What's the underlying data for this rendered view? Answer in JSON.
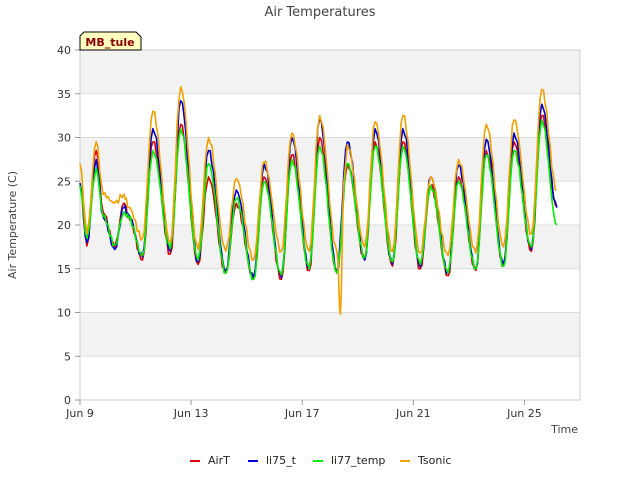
{
  "chart_data": {
    "type": "line",
    "title": "Air Temperatures",
    "xlabel": "Time",
    "ylabel": "Air Temperature (C)",
    "site_badge": "MB_tule",
    "xlim": [
      "2023-06-09",
      "2023-06-27"
    ],
    "ylim": [
      0,
      40
    ],
    "x_ticks": [
      {
        "date": "2023-06-09",
        "label": "Jun 9"
      },
      {
        "date": "2023-06-13",
        "label": "Jun 13"
      },
      {
        "date": "2023-06-17",
        "label": "Jun 17"
      },
      {
        "date": "2023-06-21",
        "label": "Jun 21"
      },
      {
        "date": "2023-06-25",
        "label": "Jun 25"
      }
    ],
    "y_ticks": [
      0,
      5,
      10,
      15,
      20,
      25,
      30,
      35,
      40
    ],
    "y_tick_labels": [
      "0",
      "5",
      "10",
      "15",
      "20",
      "25",
      "30",
      "35",
      "40"
    ],
    "legend_position": "bottom",
    "grid": true,
    "series": [
      {
        "name": "AirT",
        "color": "#dd0000",
        "values": [
          {
            "date": "2023-06-09 00:00",
            "y": 24.5
          },
          {
            "date": "2023-06-09 06:00",
            "y": 17.6
          },
          {
            "date": "2023-06-09 14:00",
            "y": 28.5
          },
          {
            "date": "2023-06-09 20:00",
            "y": 21.5
          },
          {
            "date": "2023-06-10 06:00",
            "y": 17.5
          },
          {
            "date": "2023-06-10 14:00",
            "y": 22.5
          },
          {
            "date": "2023-06-10 18:00",
            "y": 21.0
          },
          {
            "date": "2023-06-11 06:00",
            "y": 16.0
          },
          {
            "date": "2023-06-11 15:00",
            "y": 29.5
          },
          {
            "date": "2023-06-12 06:00",
            "y": 16.7
          },
          {
            "date": "2023-06-12 15:00",
            "y": 31.5
          },
          {
            "date": "2023-06-13 06:00",
            "y": 15.5
          },
          {
            "date": "2023-06-13 15:00",
            "y": 25.5
          },
          {
            "date": "2023-06-14 06:00",
            "y": 14.5
          },
          {
            "date": "2023-06-14 15:00",
            "y": 22.5
          },
          {
            "date": "2023-06-15 06:00",
            "y": 13.8
          },
          {
            "date": "2023-06-15 15:00",
            "y": 25.5
          },
          {
            "date": "2023-06-16 06:00",
            "y": 13.8
          },
          {
            "date": "2023-06-16 15:00",
            "y": 28.0
          },
          {
            "date": "2023-06-17 06:00",
            "y": 14.8
          },
          {
            "date": "2023-06-17 15:00",
            "y": 30.0
          },
          {
            "date": "2023-06-18 06:00",
            "y": 14.5
          },
          {
            "date": "2023-06-18 15:00",
            "y": 27.0
          },
          {
            "date": "2023-06-19 06:00",
            "y": 16.0
          },
          {
            "date": "2023-06-19 15:00",
            "y": 29.5
          },
          {
            "date": "2023-06-20 06:00",
            "y": 15.3
          },
          {
            "date": "2023-06-20 15:00",
            "y": 29.5
          },
          {
            "date": "2023-06-21 06:00",
            "y": 15.0
          },
          {
            "date": "2023-06-21 15:00",
            "y": 24.5
          },
          {
            "date": "2023-06-22 06:00",
            "y": 14.2
          },
          {
            "date": "2023-06-22 15:00",
            "y": 25.5
          },
          {
            "date": "2023-06-23 06:00",
            "y": 14.8
          },
          {
            "date": "2023-06-23 15:00",
            "y": 28.5
          },
          {
            "date": "2023-06-24 06:00",
            "y": 15.3
          },
          {
            "date": "2023-06-24 15:00",
            "y": 29.5
          },
          {
            "date": "2023-06-25 06:00",
            "y": 17.0
          },
          {
            "date": "2023-06-25 15:00",
            "y": 32.5
          },
          {
            "date": "2023-06-26 04:00",
            "y": 22.0
          }
        ]
      },
      {
        "name": "li75_t",
        "color": "#0000cc",
        "values": [
          {
            "date": "2023-06-09 00:00",
            "y": 24.8
          },
          {
            "date": "2023-06-09 06:00",
            "y": 18.0
          },
          {
            "date": "2023-06-09 14:00",
            "y": 27.5
          },
          {
            "date": "2023-06-09 20:00",
            "y": 21.0
          },
          {
            "date": "2023-06-10 06:00",
            "y": 17.2
          },
          {
            "date": "2023-06-10 14:00",
            "y": 22.0
          },
          {
            "date": "2023-06-10 18:00",
            "y": 21.2
          },
          {
            "date": "2023-06-11 06:00",
            "y": 16.3
          },
          {
            "date": "2023-06-11 15:00",
            "y": 31.0
          },
          {
            "date": "2023-06-12 06:00",
            "y": 17.0
          },
          {
            "date": "2023-06-12 15:00",
            "y": 34.2
          },
          {
            "date": "2023-06-13 06:00",
            "y": 15.8
          },
          {
            "date": "2023-06-13 15:00",
            "y": 28.5
          },
          {
            "date": "2023-06-14 06:00",
            "y": 14.8
          },
          {
            "date": "2023-06-14 15:00",
            "y": 24.0
          },
          {
            "date": "2023-06-15 06:00",
            "y": 14.0
          },
          {
            "date": "2023-06-15 15:00",
            "y": 27.0
          },
          {
            "date": "2023-06-16 06:00",
            "y": 14.0
          },
          {
            "date": "2023-06-16 15:00",
            "y": 30.0
          },
          {
            "date": "2023-06-17 06:00",
            "y": 15.0
          },
          {
            "date": "2023-06-17 15:00",
            "y": 32.0
          },
          {
            "date": "2023-06-18 06:00",
            "y": 14.8
          },
          {
            "date": "2023-06-18 15:00",
            "y": 29.5
          },
          {
            "date": "2023-06-19 06:00",
            "y": 16.0
          },
          {
            "date": "2023-06-19 15:00",
            "y": 31.0
          },
          {
            "date": "2023-06-20 06:00",
            "y": 15.5
          },
          {
            "date": "2023-06-20 15:00",
            "y": 31.0
          },
          {
            "date": "2023-06-21 06:00",
            "y": 15.2
          },
          {
            "date": "2023-06-21 15:00",
            "y": 25.5
          },
          {
            "date": "2023-06-22 06:00",
            "y": 14.5
          },
          {
            "date": "2023-06-22 15:00",
            "y": 26.8
          },
          {
            "date": "2023-06-23 06:00",
            "y": 15.0
          },
          {
            "date": "2023-06-23 15:00",
            "y": 29.8
          },
          {
            "date": "2023-06-24 06:00",
            "y": 15.5
          },
          {
            "date": "2023-06-24 15:00",
            "y": 30.5
          },
          {
            "date": "2023-06-25 06:00",
            "y": 17.2
          },
          {
            "date": "2023-06-25 15:00",
            "y": 33.8
          },
          {
            "date": "2023-06-26 04:00",
            "y": 22.0
          }
        ]
      },
      {
        "name": "li77_temp",
        "color": "#00ee00",
        "values": [
          {
            "date": "2023-06-09 00:00",
            "y": 24.5
          },
          {
            "date": "2023-06-09 06:00",
            "y": 18.5
          },
          {
            "date": "2023-06-09 14:00",
            "y": 26.5
          },
          {
            "date": "2023-06-09 20:00",
            "y": 21.0
          },
          {
            "date": "2023-06-10 06:00",
            "y": 17.8
          },
          {
            "date": "2023-06-10 14:00",
            "y": 21.5
          },
          {
            "date": "2023-06-10 18:00",
            "y": 20.8
          },
          {
            "date": "2023-06-11 06:00",
            "y": 16.5
          },
          {
            "date": "2023-06-11 15:00",
            "y": 28.5
          },
          {
            "date": "2023-06-12 06:00",
            "y": 17.3
          },
          {
            "date": "2023-06-12 15:00",
            "y": 31.0
          },
          {
            "date": "2023-06-13 06:00",
            "y": 16.0
          },
          {
            "date": "2023-06-13 15:00",
            "y": 27.0
          },
          {
            "date": "2023-06-14 06:00",
            "y": 14.5
          },
          {
            "date": "2023-06-14 15:00",
            "y": 23.0
          },
          {
            "date": "2023-06-15 06:00",
            "y": 13.8
          },
          {
            "date": "2023-06-15 15:00",
            "y": 25.0
          },
          {
            "date": "2023-06-16 06:00",
            "y": 14.3
          },
          {
            "date": "2023-06-16 15:00",
            "y": 27.5
          },
          {
            "date": "2023-06-17 06:00",
            "y": 15.0
          },
          {
            "date": "2023-06-17 15:00",
            "y": 29.0
          },
          {
            "date": "2023-06-18 06:00",
            "y": 14.5
          },
          {
            "date": "2023-06-18 15:00",
            "y": 27.0
          },
          {
            "date": "2023-06-19 06:00",
            "y": 16.3
          },
          {
            "date": "2023-06-19 15:00",
            "y": 29.0
          },
          {
            "date": "2023-06-20 06:00",
            "y": 15.8
          },
          {
            "date": "2023-06-20 15:00",
            "y": 29.0
          },
          {
            "date": "2023-06-21 06:00",
            "y": 15.5
          },
          {
            "date": "2023-06-21 15:00",
            "y": 24.5
          },
          {
            "date": "2023-06-22 06:00",
            "y": 14.5
          },
          {
            "date": "2023-06-22 15:00",
            "y": 25.0
          },
          {
            "date": "2023-06-23 06:00",
            "y": 15.0
          },
          {
            "date": "2023-06-23 15:00",
            "y": 28.0
          },
          {
            "date": "2023-06-24 06:00",
            "y": 15.3
          },
          {
            "date": "2023-06-24 15:00",
            "y": 28.5
          },
          {
            "date": "2023-06-25 06:00",
            "y": 17.5
          },
          {
            "date": "2023-06-25 15:00",
            "y": 32.0
          },
          {
            "date": "2023-06-26 04:00",
            "y": 20.0
          }
        ]
      },
      {
        "name": "Tsonic",
        "color": "#f0a000",
        "values": [
          {
            "date": "2023-06-09 00:00",
            "y": 27.0
          },
          {
            "date": "2023-06-09 06:00",
            "y": 19.0
          },
          {
            "date": "2023-06-09 14:00",
            "y": 29.5
          },
          {
            "date": "2023-06-09 20:00",
            "y": 23.5
          },
          {
            "date": "2023-06-10 06:00",
            "y": 22.5
          },
          {
            "date": "2023-06-10 14:00",
            "y": 23.5
          },
          {
            "date": "2023-06-10 18:00",
            "y": 22.0
          },
          {
            "date": "2023-06-11 06:00",
            "y": 18.5
          },
          {
            "date": "2023-06-11 15:00",
            "y": 33.0
          },
          {
            "date": "2023-06-12 06:00",
            "y": 18.0
          },
          {
            "date": "2023-06-12 15:00",
            "y": 35.8
          },
          {
            "date": "2023-06-13 06:00",
            "y": 17.2
          },
          {
            "date": "2023-06-13 15:00",
            "y": 30.0
          },
          {
            "date": "2023-06-14 06:00",
            "y": 17.0
          },
          {
            "date": "2023-06-14 15:00",
            "y": 25.3
          },
          {
            "date": "2023-06-15 06:00",
            "y": 16.0
          },
          {
            "date": "2023-06-15 15:00",
            "y": 27.2
          },
          {
            "date": "2023-06-16 06:00",
            "y": 17.0
          },
          {
            "date": "2023-06-16 15:00",
            "y": 30.5
          },
          {
            "date": "2023-06-17 06:00",
            "y": 17.0
          },
          {
            "date": "2023-06-17 15:00",
            "y": 32.5
          },
          {
            "date": "2023-06-18 06:00",
            "y": 17.0
          },
          {
            "date": "2023-06-18 09:00",
            "y": 9.8
          },
          {
            "date": "2023-06-18 12:00",
            "y": 25.0
          },
          {
            "date": "2023-06-18 15:00",
            "y": 29.2
          },
          {
            "date": "2023-06-19 06:00",
            "y": 17.5
          },
          {
            "date": "2023-06-19 15:00",
            "y": 31.8
          },
          {
            "date": "2023-06-20 06:00",
            "y": 17.0
          },
          {
            "date": "2023-06-20 15:00",
            "y": 32.5
          },
          {
            "date": "2023-06-21 06:00",
            "y": 16.8
          },
          {
            "date": "2023-06-21 15:00",
            "y": 25.5
          },
          {
            "date": "2023-06-22 06:00",
            "y": 16.5
          },
          {
            "date": "2023-06-22 15:00",
            "y": 27.5
          },
          {
            "date": "2023-06-23 06:00",
            "y": 16.8
          },
          {
            "date": "2023-06-23 15:00",
            "y": 31.5
          },
          {
            "date": "2023-06-24 06:00",
            "y": 17.5
          },
          {
            "date": "2023-06-24 15:00",
            "y": 32.0
          },
          {
            "date": "2023-06-25 06:00",
            "y": 19.0
          },
          {
            "date": "2023-06-25 15:00",
            "y": 35.5
          },
          {
            "date": "2023-06-26 04:00",
            "y": 24.0
          }
        ]
      }
    ]
  }
}
